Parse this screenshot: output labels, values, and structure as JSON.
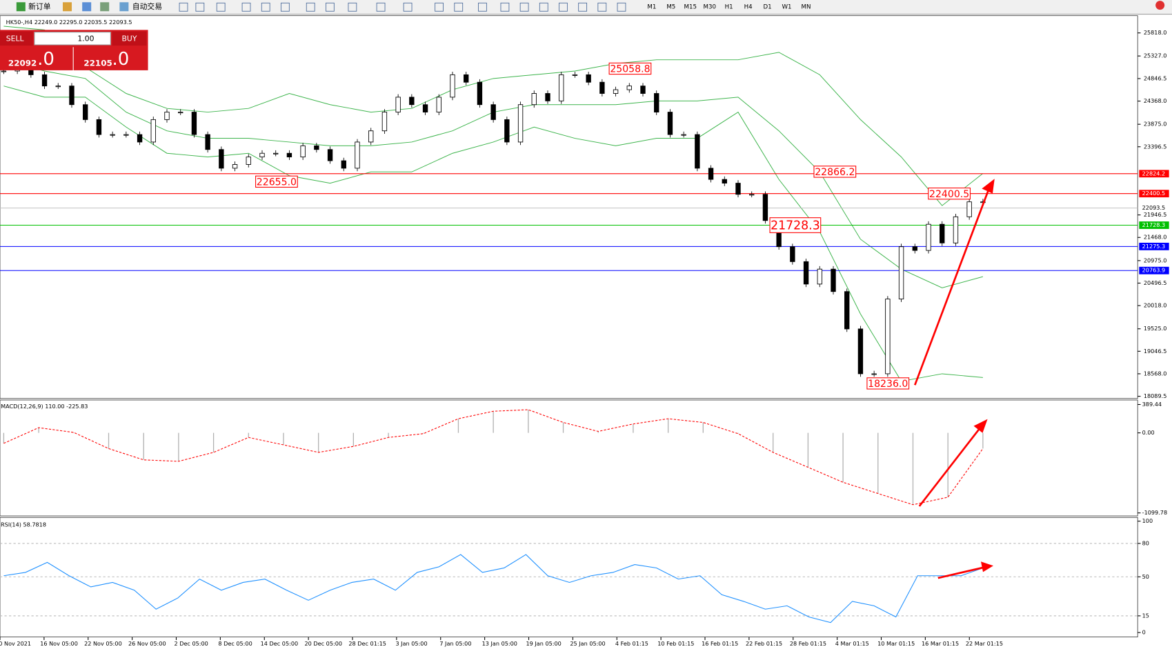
{
  "toolbar": {
    "new_order": "新订单",
    "auto_trading": "自动交易",
    "timeframes": [
      "M1",
      "M5",
      "M15",
      "M30",
      "H1",
      "H4",
      "D1",
      "W1",
      "MN"
    ]
  },
  "trade_panel": {
    "sell": "SELL",
    "buy": "BUY",
    "lots": "1.00",
    "sell_price_big": "22092",
    "sell_price_frac": ".0",
    "buy_price_big": "22105",
    "buy_price_frac": ".0"
  },
  "chart_data": [
    {
      "type": "candlestick",
      "title": "HK50-,H4  22249.0 22295.0 22035.5 22093.5",
      "x_labels": [
        "0 Nov 2021",
        "16 Nov 05:00",
        "22 Nov 05:00",
        "26 Nov 05:00",
        "2 Dec 05:00",
        "8 Dec 05:00",
        "14 Dec 05:00",
        "20 Dec 05:00",
        "28 Dec 01:15",
        "3 Jan 05:00",
        "7 Jan 05:00",
        "13 Jan 05:00",
        "19 Jan 05:00",
        "25 Jan 05:00",
        "4 Feb 01:15",
        "10 Feb 01:15",
        "16 Feb 01:15",
        "22 Feb 01:15",
        "28 Feb 01:15",
        "4 Mar 01:15",
        "10 Mar 01:15",
        "16 Mar 01:15",
        "22 Mar 01:15"
      ],
      "closes": [
        25007,
        25166,
        24928,
        24689,
        24689,
        24292,
        23974,
        23656,
        23656,
        23656,
        23497,
        23974,
        24133,
        24133,
        23656,
        23338,
        22940,
        23020,
        23179,
        23258,
        23258,
        23179,
        23417,
        23338,
        23099,
        22940,
        23497,
        23735,
        24133,
        24451,
        24292,
        24133,
        24451,
        24928,
        24769,
        24292,
        23974,
        23497,
        24292,
        24530,
        24371,
        24928,
        24928,
        24769,
        24530,
        24610,
        24689,
        24530,
        24133,
        23656,
        23656,
        22940,
        22702,
        22622,
        22384,
        22384,
        21827,
        21271,
        20953,
        20476,
        20794,
        20317,
        19522,
        18568,
        18568,
        20158,
        21271,
        21191,
        21748,
        21350,
        21907,
        22225,
        22225
      ],
      "bands": [
        {
          "name": "upper",
          "color": "#3cb44b",
          "values": [
            25961,
            25882,
            25087,
            24530,
            24212,
            24133,
            24212,
            24530,
            24292,
            24133,
            24212,
            24610,
            24848,
            24928,
            25007,
            25166,
            25246,
            25246,
            25246,
            25405,
            24928,
            23974,
            23179,
            22145,
            22829
          ]
        },
        {
          "name": "middle",
          "color": "#3cb44b",
          "values": [
            25246,
            25007,
            24848,
            24133,
            23735,
            23576,
            23576,
            23497,
            23417,
            23417,
            23497,
            23735,
            24133,
            24292,
            24292,
            24292,
            24371,
            24371,
            24451,
            23735,
            22861,
            21430,
            20794,
            20396,
            20634
          ]
        },
        {
          "name": "lower",
          "color": "#3cb44b",
          "values": [
            24689,
            24451,
            24451,
            23815,
            23258,
            23179,
            23258,
            22781,
            22622,
            22861,
            22861,
            23258,
            23497,
            23815,
            23576,
            23417,
            23576,
            23576,
            24133,
            22702,
            21589,
            19840,
            18409,
            18568,
            18488
          ]
        }
      ],
      "ylim": [
        18089.5,
        25818.0
      ],
      "yticks": [
        {
          "value": 25818.0,
          "label": "25818.0"
        },
        {
          "value": 25327.0,
          "label": "25327.0"
        },
        24846.5,
        {
          "value": 24368.0,
          "label": "24368.0"
        },
        {
          "value": 23875.0,
          "label": "23875.0"
        },
        23396.5,
        21946.5,
        {
          "value": 21468.0,
          "label": "21468.0"
        },
        {
          "value": 20975.0,
          "label": "20975.0"
        },
        20496.5,
        {
          "value": 20018.0,
          "label": "20018.0"
        },
        {
          "value": 19525.0,
          "label": "19525.0"
        },
        19046.5,
        {
          "value": 18568.0,
          "label": "18568.0"
        },
        18089.5
      ],
      "levels": [
        {
          "value": 22824.2,
          "color": "#ff0000"
        },
        {
          "value": 22400.5,
          "color": "#ff0000"
        },
        {
          "value": 22093.5,
          "color": "#c0c0c0"
        },
        {
          "value": 21728.3,
          "color": "#00c000"
        },
        {
          "value": 21275.3,
          "color": "#0000ff"
        },
        {
          "value": 20763.9,
          "color": "#0000ff"
        }
      ],
      "annotations": [
        25058.8,
        {
          "value": 22655.0,
          "label": "22655.0"
        },
        22866.2,
        22400.5,
        21728.3,
        {
          "value": 18236.0,
          "label": "18236.0"
        }
      ]
    },
    {
      "type": "line",
      "title": "MACD(12,26,9) 110.00 -225.83",
      "ylim": [
        -1099.78,
        389.44
      ],
      "yticks": [
        389.44,
        {
          "value": 0.0,
          "label": "0.00"
        },
        -1099.78
      ],
      "series": [
        {
          "color": "#ff0000",
          "values": [
            -144,
            71,
            6,
            -216,
            -371,
            -391,
            -268,
            -63,
            -165,
            -268,
            -186,
            -63,
            -11,
            194,
            297,
            318,
            143,
            20,
            122,
            194,
            143,
            -11,
            -268,
            -473,
            -679,
            -833,
            -987,
            -884,
            -216
          ]
        }
      ]
    },
    {
      "type": "line",
      "title": "RSI(14) 58.7818",
      "ylim": [
        0,
        100
      ],
      "yticks": [
        100,
        80,
        50,
        15,
        0
      ],
      "series": [
        {
          "color": "#1e90ff",
          "values": [
            51,
            54,
            63,
            51,
            41,
            45,
            38,
            21,
            31,
            48,
            38,
            45,
            48,
            38,
            29,
            38,
            45,
            48,
            38,
            54,
            59,
            70,
            54,
            58,
            70,
            51,
            45,
            51,
            54,
            61,
            58,
            48,
            51,
            34,
            28,
            21,
            24,
            14,
            9,
            28,
            24,
            14,
            51,
            51,
            51,
            58
          ]
        }
      ]
    }
  ]
}
